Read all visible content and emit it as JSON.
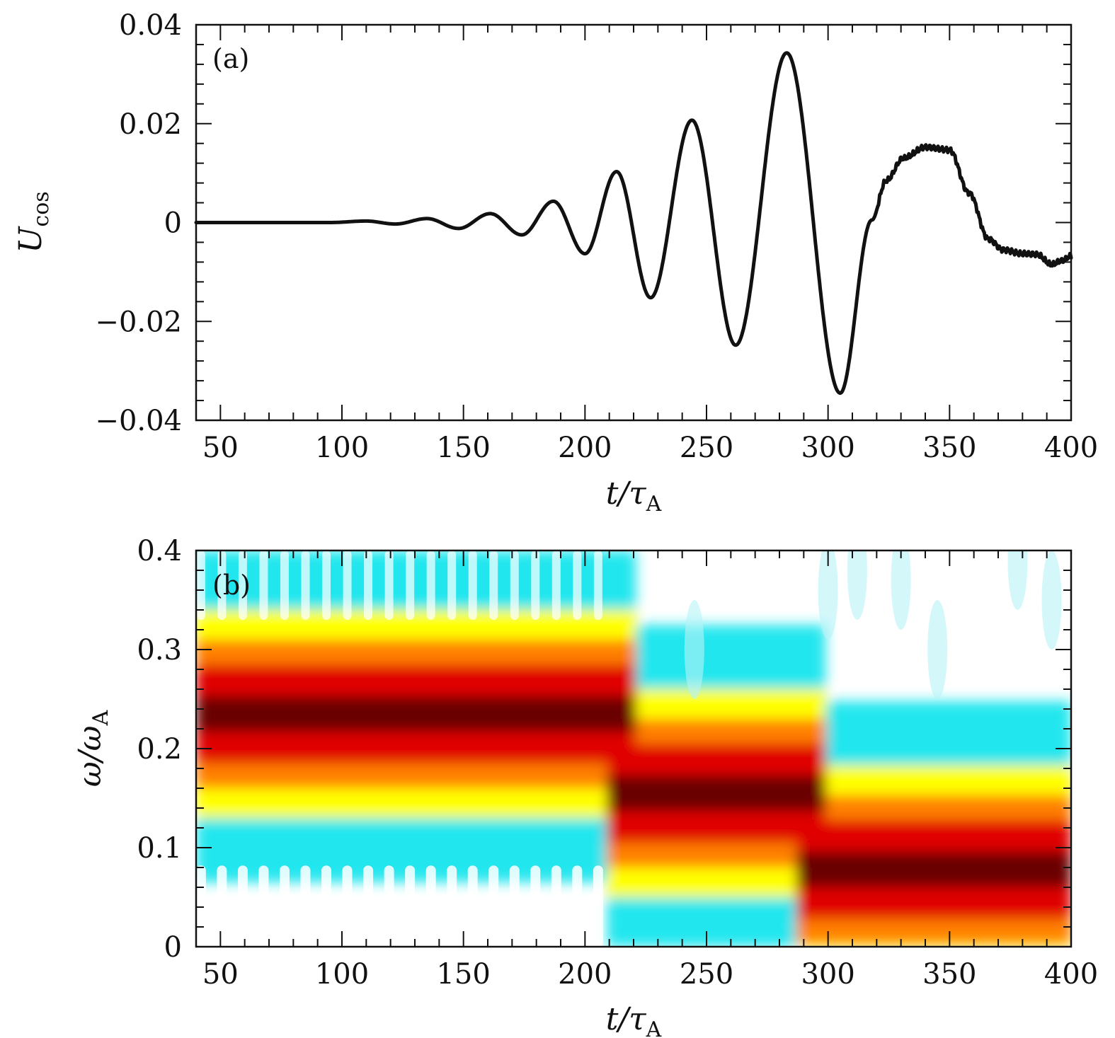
{
  "chart_data": [
    {
      "type": "line",
      "panel_label": "(a)",
      "xlabel": "t/τA",
      "ylabel": "Ucos",
      "xlim": [
        40,
        400
      ],
      "ylim": [
        -0.04,
        0.04
      ],
      "xticks": [
        50,
        100,
        150,
        200,
        250,
        300,
        350,
        400
      ],
      "xtick_labels": [
        "50",
        "100",
        "150",
        "200",
        "250",
        "300",
        "350",
        "400"
      ],
      "yticks": [
        0.04,
        0.02,
        0,
        -0.02,
        -0.04
      ],
      "ytick_labels": [
        "0.04",
        "0.02",
        "0",
        "−0.02",
        "−0.04"
      ],
      "grid": false,
      "series": [
        {
          "x": [
            40,
            60,
            80,
            95,
            110,
            122,
            135,
            148,
            161,
            174,
            187,
            200,
            213,
            227,
            244,
            262,
            283,
            305,
            318,
            324,
            331,
            340,
            350,
            358,
            366,
            372,
            380,
            386,
            392,
            396,
            400
          ],
          "y": [
            0,
            0,
            0,
            0,
            0.0003,
            -0.0003,
            0.0008,
            -0.0012,
            0.0018,
            -0.0025,
            0.0043,
            -0.0063,
            0.0103,
            -0.0152,
            0.0207,
            -0.0248,
            0.0343,
            -0.0345,
            0.0005,
            0.0085,
            0.013,
            0.0152,
            0.0147,
            0.006,
            -0.0033,
            -0.0055,
            -0.0063,
            -0.0065,
            -0.0085,
            -0.0078,
            -0.0068
          ]
        }
      ]
    },
    {
      "type": "heatmap",
      "panel_label": "(b)",
      "xlabel": "t/τA",
      "ylabel": "ω/ωA",
      "xlim": [
        40,
        400
      ],
      "ylim": [
        0,
        0.4
      ],
      "xticks": [
        50,
        100,
        150,
        200,
        250,
        300,
        350,
        400
      ],
      "xtick_labels": [
        "50",
        "100",
        "150",
        "200",
        "250",
        "300",
        "350",
        "400"
      ],
      "yticks": [
        0.4,
        0.3,
        0.2,
        0.1,
        0
      ],
      "ytick_labels": [
        "0.4",
        "0.3",
        "0.2",
        "0.1",
        "0"
      ],
      "colormap": [
        "#ffffff",
        "#22e6ee",
        "#ffff00",
        "#ff8000",
        "#e00000",
        "#6a0000"
      ],
      "ridges": [
        {
          "t_start": 40,
          "t_end": 215,
          "omega": 0.235
        },
        {
          "t_start": 215,
          "t_end": 293,
          "omega": 0.155
        },
        {
          "t_start": 293,
          "t_end": 400,
          "omega": 0.078
        }
      ]
    }
  ]
}
